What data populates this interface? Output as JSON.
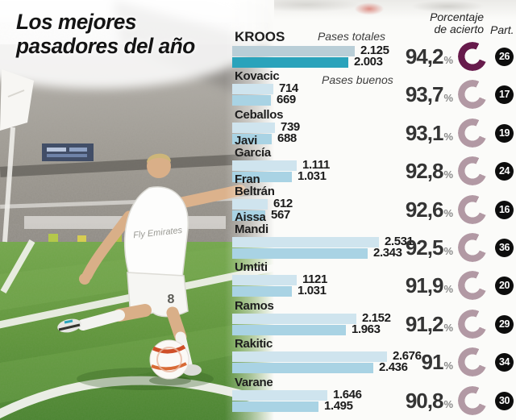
{
  "title": {
    "line1": "Los mejores",
    "line2": "pasadores del año"
  },
  "header": {
    "accuracy_line1": "Porcentaje",
    "accuracy_line2": "de acierto",
    "participations": "Part."
  },
  "legend": {
    "totals": "Pases totales",
    "good": "Pases buenos"
  },
  "photo": {
    "jersey_sponsor": "Fly Emirates",
    "shorts_number": "8"
  },
  "colors": {
    "bar_total": "#cfe4ee",
    "bar_good": "#a9d3e4",
    "kroos_bar_total": "#b9ced7",
    "kroos_bar_good": "#2aa3bb",
    "donut": "#b299a4",
    "donut_highlight": "#671b4c",
    "badge_bg": "#0d0d0d",
    "grass": "#679d43"
  },
  "chart_data": {
    "type": "bar",
    "orientation": "horizontal",
    "series_labels": [
      "Pases totales",
      "Pases buenos"
    ],
    "max_value": 2676,
    "pct_symbol": "%",
    "players": [
      {
        "name_lines": [
          "KROOS"
        ],
        "total": 2125,
        "good": 2003,
        "total_label": "2.125",
        "good_label": "2.003",
        "accuracy": "94,2",
        "matches": "26",
        "highlight": true
      },
      {
        "name_lines": [
          "Kovacic"
        ],
        "total": 714,
        "good": 669,
        "total_label": "714",
        "good_label": "669",
        "accuracy": "93,7",
        "matches": "17",
        "highlight": false
      },
      {
        "name_lines": [
          "Ceballos"
        ],
        "total": 739,
        "good": 688,
        "total_label": "739",
        "good_label": "688",
        "accuracy": "93,1",
        "matches": "19",
        "highlight": false
      },
      {
        "name_lines": [
          "Javi",
          "García"
        ],
        "total": 1111,
        "good": 1031,
        "total_label": "1.111",
        "good_label": "1.031",
        "accuracy": "92,8",
        "matches": "24",
        "highlight": false
      },
      {
        "name_lines": [
          "Fran",
          "Beltrán"
        ],
        "total": 612,
        "good": 567,
        "total_label": "612",
        "good_label": "567",
        "accuracy": "92,6",
        "matches": "16",
        "highlight": false
      },
      {
        "name_lines": [
          "Aissa",
          "Mandi"
        ],
        "total": 2531,
        "good": 2343,
        "total_label": "2.531",
        "good_label": "2.343",
        "accuracy": "92,5",
        "matches": "36",
        "highlight": false
      },
      {
        "name_lines": [
          "Umtiti"
        ],
        "total": 1121,
        "good": 1031,
        "total_label": "1121",
        "good_label": "1.031",
        "accuracy": "91,9",
        "matches": "20",
        "highlight": false
      },
      {
        "name_lines": [
          "Ramos"
        ],
        "total": 2152,
        "good": 1963,
        "total_label": "2.152",
        "good_label": "1.963",
        "accuracy": "91,2",
        "matches": "29",
        "highlight": false
      },
      {
        "name_lines": [
          "Rakitic"
        ],
        "total": 2676,
        "good": 2436,
        "total_label": "2.676",
        "good_label": "2.436",
        "accuracy": "91",
        "matches": "34",
        "highlight": false
      },
      {
        "name_lines": [
          "Varane"
        ],
        "total": 1646,
        "good": 1495,
        "total_label": "1.646",
        "good_label": "1.495",
        "accuracy": "90,8",
        "matches": "30",
        "highlight": false
      }
    ]
  }
}
